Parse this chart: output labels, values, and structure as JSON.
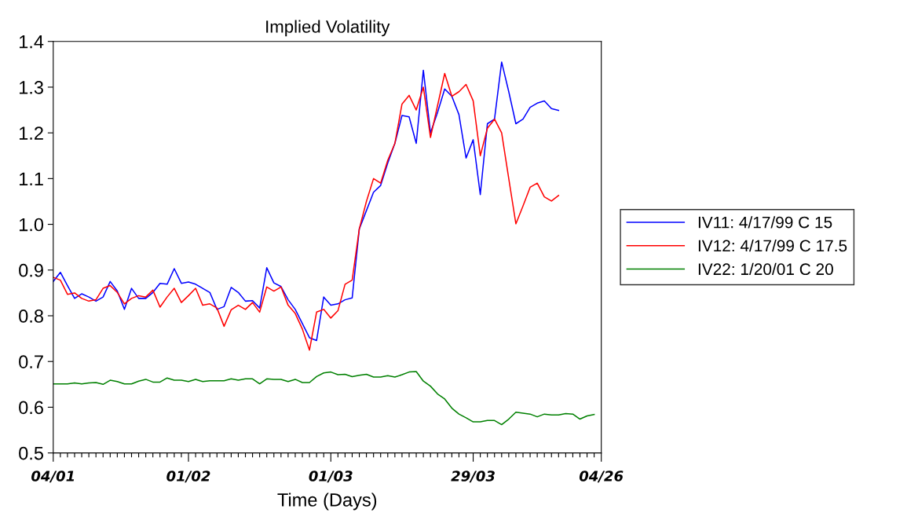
{
  "chart_data": {
    "type": "line",
    "title": "Implied Volatility",
    "xlabel": "Time (Days)",
    "categories": [
      "04/01",
      null,
      null,
      null,
      null,
      null,
      null,
      null,
      null,
      null,
      null,
      null,
      null,
      null,
      null,
      null,
      null,
      null,
      null,
      "01/02",
      null,
      null,
      null,
      null,
      null,
      null,
      null,
      null,
      null,
      null,
      null,
      null,
      null,
      null,
      null,
      null,
      null,
      null,
      null,
      "01/03",
      null,
      null,
      null,
      null,
      null,
      null,
      null,
      null,
      null,
      null,
      null,
      null,
      null,
      null,
      null,
      null,
      null,
      null,
      null,
      "29/03",
      null,
      null,
      null,
      null,
      null,
      null,
      null,
      null,
      null,
      null,
      null,
      null,
      null,
      null,
      null,
      null,
      null,
      "04/26"
    ],
    "ylim": [
      0.5,
      1.4
    ],
    "yticks": [
      {
        "value": 0.5,
        "label": "0.5"
      },
      {
        "value": 0.6,
        "label": "0.6"
      },
      {
        "value": 0.7,
        "label": "0.7"
      },
      {
        "value": 0.8,
        "label": "0.8"
      },
      {
        "value": 0.9,
        "label": "0.9"
      },
      {
        "value": 1.0,
        "label": "1.0"
      },
      {
        "value": 1.1,
        "label": "1.1"
      },
      {
        "value": 1.2,
        "label": "1.2"
      },
      {
        "value": 1.3,
        "label": "1.3"
      },
      {
        "value": 1.4,
        "label": "1.4"
      }
    ],
    "grid": false,
    "legend": "right",
    "marker": "none",
    "line_style": "solid",
    "series": [
      {
        "name": "IV11: 4/17/99 C 15",
        "color": "#0000ff",
        "values": [
          0.875,
          0.895,
          0.866,
          0.838,
          0.848,
          0.841,
          0.832,
          0.841,
          0.875,
          0.854,
          0.814,
          0.86,
          0.838,
          0.838,
          0.851,
          0.871,
          0.869,
          0.903,
          0.871,
          0.874,
          0.869,
          0.86,
          0.851,
          0.814,
          0.82,
          0.862,
          0.851,
          0.832,
          0.833,
          0.817,
          0.905,
          0.872,
          0.864,
          0.835,
          0.814,
          0.783,
          0.752,
          0.746,
          0.841,
          0.823,
          0.826,
          0.835,
          0.839,
          0.99,
          1.03,
          1.07,
          1.085,
          1.134,
          1.177,
          1.238,
          1.235,
          1.177,
          1.337,
          1.2,
          1.245,
          1.296,
          1.28,
          1.24,
          1.145,
          1.185,
          1.065,
          1.22,
          1.23,
          1.355,
          1.29,
          1.22,
          1.23,
          1.256,
          1.265,
          1.27,
          1.253,
          1.249,
          null,
          null,
          null,
          null,
          null,
          null
        ]
      },
      {
        "name": "IV12: 4/17/99 C 17.5",
        "color": "#ff0000",
        "values": [
          0.884,
          0.878,
          0.847,
          0.85,
          0.838,
          0.832,
          0.835,
          0.86,
          0.866,
          0.851,
          0.826,
          0.838,
          0.844,
          0.841,
          0.856,
          0.819,
          0.841,
          0.86,
          0.829,
          0.844,
          0.86,
          0.823,
          0.826,
          0.817,
          0.777,
          0.813,
          0.823,
          0.814,
          0.829,
          0.808,
          0.863,
          0.854,
          0.863,
          0.823,
          0.805,
          0.771,
          0.725,
          0.808,
          0.814,
          0.795,
          0.811,
          0.869,
          0.878,
          0.99,
          1.05,
          1.1,
          1.09,
          1.14,
          1.177,
          1.263,
          1.282,
          1.25,
          1.3,
          1.19,
          1.26,
          1.33,
          1.28,
          1.29,
          1.306,
          1.27,
          1.15,
          1.21,
          1.23,
          1.2,
          1.1,
          1.001,
          1.04,
          1.081,
          1.09,
          1.06,
          1.051,
          1.063,
          null,
          null,
          null,
          null,
          null,
          null
        ]
      },
      {
        "name": "IV22: 1/20/01 C 20",
        "color": "#008000",
        "values": [
          0.651,
          0.651,
          0.651,
          0.653,
          0.651,
          0.653,
          0.654,
          0.65,
          0.659,
          0.656,
          0.651,
          0.651,
          0.657,
          0.661,
          0.655,
          0.655,
          0.664,
          0.659,
          0.659,
          0.656,
          0.661,
          0.656,
          0.658,
          0.658,
          0.658,
          0.662,
          0.659,
          0.662,
          0.662,
          0.651,
          0.662,
          0.661,
          0.661,
          0.656,
          0.661,
          0.654,
          0.654,
          0.667,
          0.675,
          0.677,
          0.671,
          0.672,
          0.667,
          0.67,
          0.672,
          0.666,
          0.666,
          0.669,
          0.666,
          0.671,
          0.677,
          0.678,
          0.657,
          0.646,
          0.629,
          0.618,
          0.598,
          0.585,
          0.577,
          0.568,
          0.568,
          0.571,
          0.571,
          0.562,
          0.574,
          0.589,
          0.587,
          0.585,
          0.579,
          0.585,
          0.583,
          0.583,
          0.586,
          0.585,
          0.574,
          0.581,
          0.584,
          null
        ]
      }
    ]
  }
}
